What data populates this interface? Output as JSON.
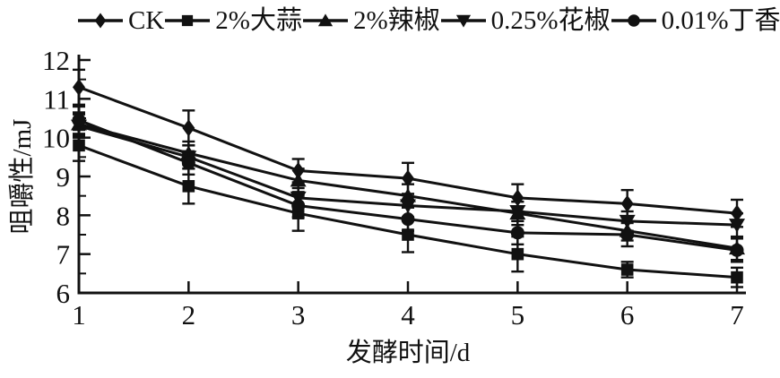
{
  "figure": {
    "background": "#ffffff",
    "ink": "#111111"
  },
  "chart_data": {
    "type": "line",
    "title": "",
    "xlabel": "发酵时间/d",
    "ylabel": "咀嚼性/mJ",
    "xlim": [
      1,
      7
    ],
    "ylim": [
      6,
      12
    ],
    "x": [
      1,
      2,
      3,
      4,
      5,
      6,
      7
    ],
    "x_ticks": [
      1,
      2,
      3,
      4,
      5,
      6,
      7
    ],
    "y_ticks": [
      6,
      7,
      8,
      9,
      10,
      11,
      12
    ],
    "y_minor_ticks": [
      6.5,
      7.5,
      8.5,
      9.5,
      10.5,
      11.5
    ],
    "grid": false,
    "legend_position": "top",
    "error_bars": true,
    "line_color": "#111111",
    "series": [
      {
        "name": "CK",
        "marker": "diamond",
        "values": [
          11.3,
          10.25,
          9.15,
          8.95,
          8.45,
          8.3,
          8.05
        ],
        "errors": [
          0.45,
          0.45,
          0.3,
          0.4,
          0.35,
          0.35,
          0.35
        ]
      },
      {
        "name": "2%大蒜",
        "marker": "square",
        "values": [
          9.8,
          8.75,
          8.05,
          7.5,
          7.0,
          6.6,
          6.4
        ],
        "errors": [
          0.4,
          0.45,
          0.45,
          0.45,
          0.45,
          0.2,
          0.25
        ]
      },
      {
        "name": "2%辣椒",
        "marker": "triangle-up",
        "values": [
          10.35,
          9.6,
          8.9,
          8.5,
          8.05,
          7.6,
          7.15
        ],
        "errors": [
          0.3,
          0.3,
          0.3,
          0.3,
          0.3,
          0.25,
          0.3
        ]
      },
      {
        "name": "0.25%花椒",
        "marker": "triangle-down",
        "values": [
          10.3,
          9.5,
          8.45,
          8.25,
          8.1,
          7.85,
          7.75
        ],
        "errors": [
          0.3,
          0.3,
          0.25,
          0.3,
          0.25,
          0.25,
          0.3
        ]
      },
      {
        "name": "0.01%丁香",
        "marker": "circle",
        "values": [
          10.45,
          9.35,
          8.25,
          7.9,
          7.55,
          7.5,
          7.1
        ],
        "errors": [
          0.35,
          0.3,
          0.3,
          0.3,
          0.3,
          0.3,
          0.3
        ]
      }
    ]
  }
}
